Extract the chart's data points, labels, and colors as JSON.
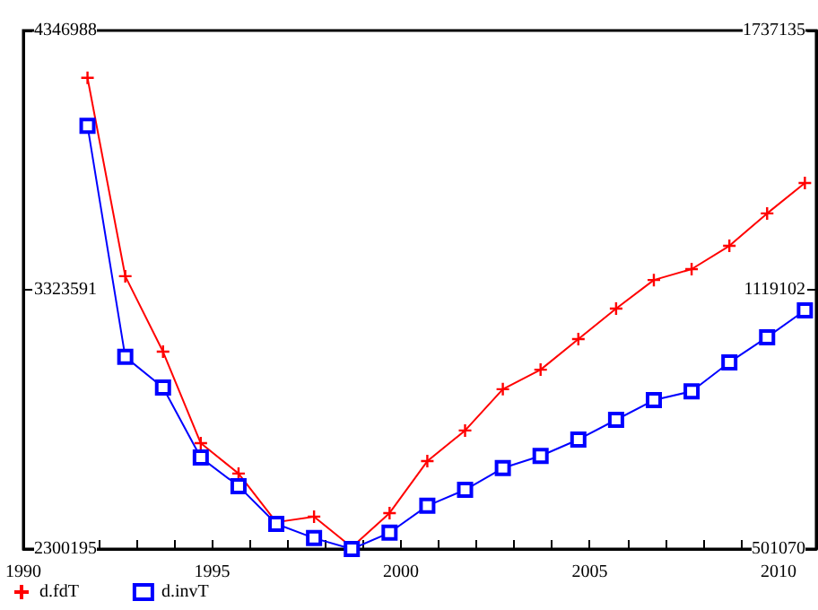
{
  "chart_data": {
    "type": "line",
    "x": [
      1991.7,
      1992.7,
      1993.7,
      1994.7,
      1995.7,
      1996.7,
      1997.7,
      1998.7,
      1999.7,
      2000.7,
      2001.7,
      2002.7,
      2003.7,
      2004.7,
      2005.7,
      2006.7,
      2007.7,
      2008.7,
      2009.7,
      2010.7
    ],
    "series": [
      {
        "name": "d.fdT",
        "color": "#ff0000",
        "marker": "cross",
        "values": [
          4160000,
          3377000,
          3079000,
          2718000,
          2598000,
          2406000,
          2428000,
          2307000,
          2442000,
          2647000,
          2768000,
          2931000,
          3008000,
          3129000,
          3249000,
          3362000,
          3405000,
          3497000,
          3625000,
          3745000
        ]
      },
      {
        "name": "d.invT",
        "color": "#0000ff",
        "marker": "square",
        "axis": "y2",
        "values": [
          1510000,
          959000,
          886000,
          719000,
          651000,
          561000,
          527000,
          501100,
          540000,
          604000,
          642000,
          694000,
          723000,
          762000,
          809000,
          856000,
          877000,
          946000,
          1006000,
          1070000
        ]
      }
    ],
    "xlim": [
      1990,
      2011
    ],
    "xticks": [
      1990,
      {
        "value": 1991,
        "label": null
      },
      {
        "value": 1992,
        "label": null
      },
      {
        "value": 1993,
        "label": null
      },
      {
        "value": 1994,
        "label": null
      },
      1995,
      {
        "value": 1996,
        "label": null
      },
      {
        "value": 1997,
        "label": null
      },
      {
        "value": 1998,
        "label": null
      },
      {
        "value": 1999,
        "label": null
      },
      2000,
      {
        "value": 2001,
        "label": null
      },
      {
        "value": 2002,
        "label": null
      },
      {
        "value": 2003,
        "label": null
      },
      {
        "value": 2004,
        "label": null
      },
      2005,
      {
        "value": 2006,
        "label": null
      },
      {
        "value": 2007,
        "label": null
      },
      {
        "value": 2008,
        "label": null
      },
      {
        "value": 2009,
        "label": null
      },
      2010
    ],
    "ylim": [
      2300195,
      4346988
    ],
    "yticks": [
      2300195,
      3323591,
      4346988
    ],
    "y2lim": [
      501070,
      1737135
    ],
    "y2ticks": [
      501070,
      1119102,
      1737135
    ],
    "grid": false,
    "legend": "bottom left",
    "line_style": "solid"
  }
}
